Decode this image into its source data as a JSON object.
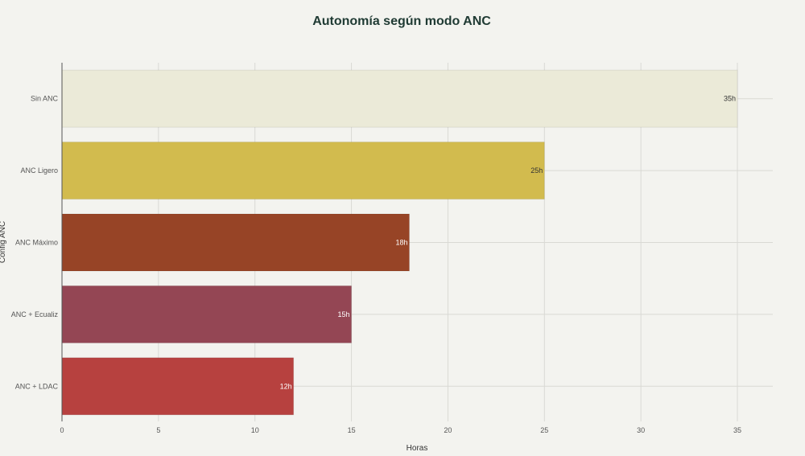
{
  "chart_data": {
    "type": "bar",
    "orientation": "horizontal",
    "title": "Autonomía según modo ANC",
    "xlabel": "Horas",
    "ylabel": "Config ANC",
    "categories": [
      "Sin ANC",
      "ANC Ligero",
      "ANC Máximo",
      "ANC + Ecualiz",
      "ANC + LDAC"
    ],
    "values": [
      35,
      25,
      18,
      15,
      12
    ],
    "data_labels": [
      "35h",
      "25h",
      "18h",
      "15h",
      "12h"
    ],
    "colors": [
      "#ebead8",
      "#d2bb4e",
      "#974426",
      "#944654",
      "#b7413f"
    ],
    "label_colors": [
      "#333333",
      "#333333",
      "#ffffff",
      "#ffffff",
      "#ffffff"
    ],
    "xlim": [
      0,
      37
    ],
    "xticks": [
      0,
      5,
      10,
      15,
      20,
      25,
      30,
      35
    ],
    "grid": true,
    "legend": "none"
  }
}
